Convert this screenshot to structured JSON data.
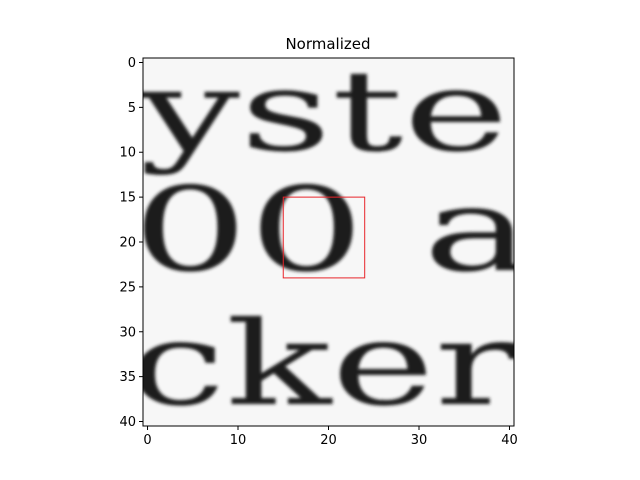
{
  "chart_data": {
    "type": "heatmap",
    "title": "Normalized",
    "xlabel": "",
    "ylabel": "",
    "image_size": [
      41,
      41
    ],
    "colormap": "gray",
    "xlim": [
      -0.5,
      40.5
    ],
    "ylim": [
      40.5,
      -0.5
    ],
    "x_ticks": [
      0,
      10,
      20,
      30,
      40
    ],
    "y_ticks": [
      0,
      5,
      10,
      15,
      20,
      25,
      30,
      35,
      40
    ],
    "x_tick_labels": [
      "0",
      "10",
      "20",
      "30",
      "40"
    ],
    "y_tick_labels": [
      "0",
      "5",
      "10",
      "15",
      "20",
      "25",
      "30",
      "35",
      "40"
    ],
    "grid": false,
    "visible_text_in_image": [
      "yste",
      "00 a",
      "cker"
    ],
    "annotation": {
      "shape": "rectangle",
      "color": "#e8242a",
      "x_range": [
        15,
        24
      ],
      "y_range": [
        15,
        24
      ]
    }
  }
}
